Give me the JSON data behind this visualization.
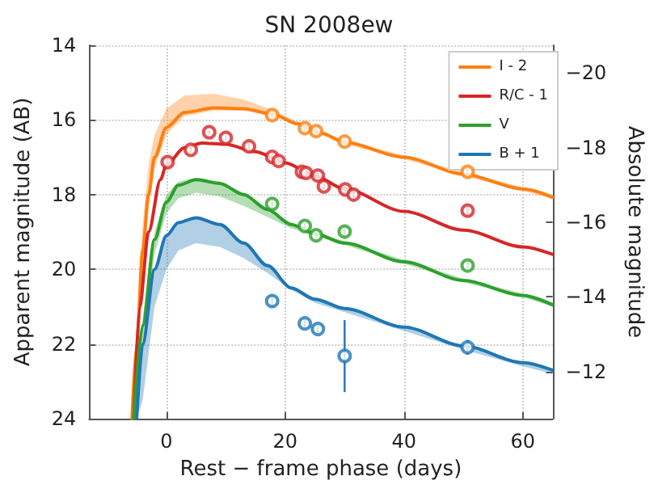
{
  "chart_data": {
    "type": "line",
    "title": "SN 2008ew",
    "xlabel": "Rest − frame phase (days)",
    "ylabel": "Apparent magnitude (AB)",
    "y2label": "Absolute magnitude",
    "xlim": [
      -13,
      65
    ],
    "xticks": [
      0,
      20,
      40,
      60
    ],
    "ylim": [
      24,
      14
    ],
    "yticks": [
      14,
      16,
      18,
      20,
      22,
      24
    ],
    "y2lim": [
      -10.74,
      -20.74
    ],
    "y2ticks": [
      -20,
      -18,
      -16,
      -14,
      -12
    ],
    "grid": true,
    "legend": "top right",
    "line_style": "solid",
    "series": [
      {
        "name": "I - 2",
        "color": "#ff7f0e",
        "x": [
          -5.8,
          -5,
          -4,
          -3,
          -2,
          0,
          3,
          8,
          13,
          18,
          22,
          26,
          30,
          40,
          50,
          60,
          65
        ],
        "values": [
          24,
          22,
          19.5,
          18,
          17,
          16.2,
          15.8,
          15.68,
          15.7,
          15.85,
          16.1,
          16.35,
          16.6,
          17,
          17.45,
          17.85,
          18.07
        ],
        "lower": [
          24,
          21.5,
          18.8,
          17.2,
          16.4,
          15.7,
          15.35,
          15.3,
          15.45,
          15.75,
          16.05,
          16.3,
          16.55,
          16.95,
          17.4,
          17.8,
          18.02
        ],
        "upper": [
          24,
          22.3,
          19.8,
          18.3,
          17.3,
          16.4,
          15.9,
          15.75,
          15.75,
          15.9,
          16.15,
          16.4,
          16.65,
          17.05,
          17.5,
          17.9,
          18.12
        ]
      },
      {
        "name": "R/C - 1",
        "color": "#d62728",
        "x": [
          -5.5,
          -4.5,
          -3,
          -1,
          0,
          3,
          6,
          10,
          15,
          20,
          25,
          30,
          40,
          50,
          60,
          65
        ],
        "values": [
          24,
          21,
          19,
          17.6,
          17.2,
          16.75,
          16.62,
          16.65,
          16.85,
          17.15,
          17.5,
          17.85,
          18.45,
          18.95,
          19.4,
          19.6
        ]
      },
      {
        "name": "V",
        "color": "#2ca02c",
        "x": [
          -5.5,
          -4,
          -2,
          0,
          2,
          5,
          9,
          13,
          17,
          21,
          25,
          30,
          40,
          50,
          60,
          65
        ],
        "values": [
          24,
          21.5,
          19.2,
          18.2,
          17.75,
          17.6,
          17.7,
          18,
          18.4,
          18.8,
          19.05,
          19.3,
          19.8,
          20.3,
          20.7,
          20.95
        ],
        "lower": [
          24,
          21.3,
          19,
          18,
          17.65,
          17.55,
          17.65,
          17.95,
          18.35,
          18.75,
          19,
          19.25,
          19.75,
          20.25,
          20.65,
          20.9
        ],
        "upper": [
          24,
          22,
          19.6,
          18.5,
          18.1,
          17.95,
          18.05,
          18.3,
          18.6,
          18.9,
          19.1,
          19.35,
          19.85,
          20.35,
          20.75,
          21
        ]
      },
      {
        "name": "B + 1",
        "color": "#1f77b4",
        "x": [
          -5,
          -4,
          -2,
          0,
          2,
          5,
          9,
          13,
          17,
          21,
          25,
          30,
          40,
          50,
          60,
          65
        ],
        "values": [
          24,
          22,
          20,
          19.1,
          18.75,
          18.62,
          18.8,
          19.3,
          19.9,
          20.5,
          20.8,
          21.05,
          21.55,
          22.05,
          22.5,
          22.7
        ],
        "lower": [
          24,
          22,
          20,
          19.1,
          18.75,
          18.62,
          18.8,
          19.3,
          19.9,
          20.5,
          20.8,
          21.05,
          21.55,
          22.05,
          22.5,
          22.7
        ],
        "upper": [
          24,
          23.5,
          21,
          20,
          19.5,
          19.3,
          19.4,
          19.7,
          20.1,
          20.55,
          20.9,
          21.15,
          21.65,
          22.15,
          22.6,
          22.8
        ]
      },
      {
        "type": "scatter",
        "marker": "circle",
        "color": "#ff7f0e",
        "x": [
          17.8,
          23.3,
          25.2,
          30,
          50.7
        ],
        "values": [
          15.87,
          16.22,
          16.3,
          16.58,
          17.39
        ],
        "errors": [
          0.08,
          0.08,
          0.08,
          0.08,
          0.1
        ]
      },
      {
        "type": "scatter",
        "marker": "circle",
        "color": "#d62728",
        "x": [
          0.2,
          4.1,
          7.2,
          10,
          13.9,
          17.8,
          18.9,
          22.8,
          23.5,
          25.5,
          26.5,
          30.1,
          31.5,
          50.7
        ],
        "values": [
          17.13,
          16.8,
          16.33,
          16.48,
          16.71,
          16.99,
          17.1,
          17.39,
          17.42,
          17.49,
          17.78,
          17.86,
          18,
          18.43
        ],
        "errors": [
          0.1,
          0.08,
          0.05,
          0.05,
          0.08,
          0.08,
          0.08,
          0.08,
          0.08,
          0.08,
          0.08,
          0.1,
          0.15,
          0.12
        ]
      },
      {
        "type": "scatter",
        "marker": "circle",
        "color": "#2ca02c",
        "x": [
          17.8,
          23.3,
          25.2,
          30,
          50.7
        ],
        "values": [
          18.25,
          18.84,
          19.09,
          18.99,
          19.9
        ],
        "errors": [
          0.1,
          0.08,
          0.08,
          0.15,
          0.1
        ]
      },
      {
        "type": "scatter",
        "marker": "circle",
        "color": "#1f77b4",
        "x": [
          17.8,
          23.3,
          25.5,
          30,
          50.7
        ],
        "values": [
          20.85,
          21.45,
          21.6,
          22.32,
          22.09
        ],
        "errors": [
          0.15,
          0.1,
          0.1,
          [
            21.36,
            23.29
          ],
          0.2
        ]
      }
    ]
  }
}
